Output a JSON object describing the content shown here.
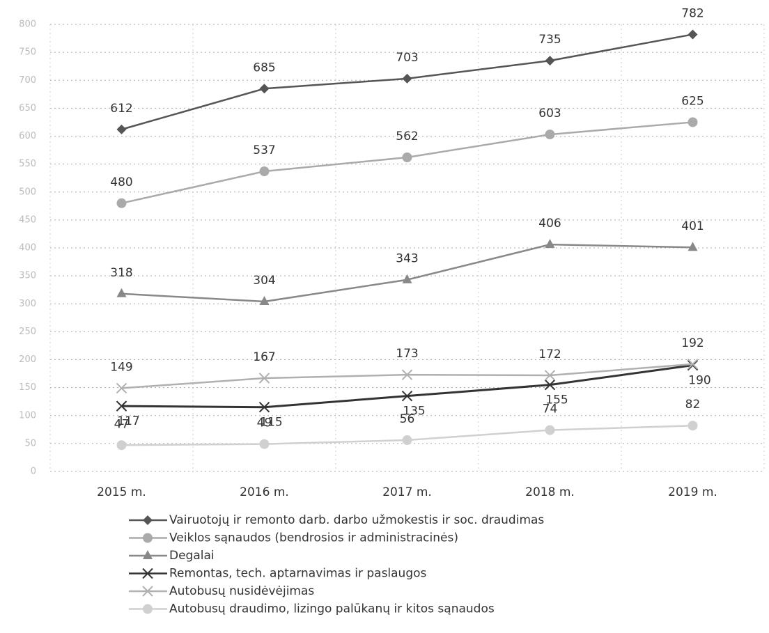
{
  "chart_data": {
    "type": "line",
    "categories": [
      "2015 m.",
      "2016 m.",
      "2017 m.",
      "2018 m.",
      "2019 m."
    ],
    "series": [
      {
        "name": "Vairuotojų ir remonto darb. darbo užmokestis ir soc. draudimas",
        "color": "#555555",
        "marker": "diamond",
        "values": [
          612,
          685,
          703,
          735,
          782
        ]
      },
      {
        "name": "Veiklos sąnaudos (bendrosios ir administracinės)",
        "color": "#aaaaaa",
        "marker": "circle",
        "values": [
          480,
          537,
          562,
          603,
          625
        ]
      },
      {
        "name": "Degalai",
        "color": "#888888",
        "marker": "triangle",
        "values": [
          318,
          304,
          343,
          406,
          401
        ]
      },
      {
        "name": "Remontas, tech. aptarnavimas ir paslaugos",
        "color": "#333333",
        "marker": "x",
        "values": [
          117,
          115,
          135,
          155,
          190
        ]
      },
      {
        "name": "Autobusų nusidėvėjimas",
        "color": "#b0b0b0",
        "marker": "x",
        "values": [
          149,
          167,
          173,
          172,
          192
        ]
      },
      {
        "name": "Autobusų draudimo, lizingo palūkanų ir kitos sąnaudos",
        "color": "#d0d0d0",
        "marker": "circle",
        "values": [
          47,
          49,
          56,
          74,
          82
        ]
      }
    ],
    "ylim": [
      0,
      800
    ],
    "yticks": [
      0,
      50,
      100,
      150,
      200,
      250,
      300,
      350,
      400,
      450,
      500,
      550,
      600,
      650,
      700,
      750,
      800
    ],
    "grid": true
  }
}
